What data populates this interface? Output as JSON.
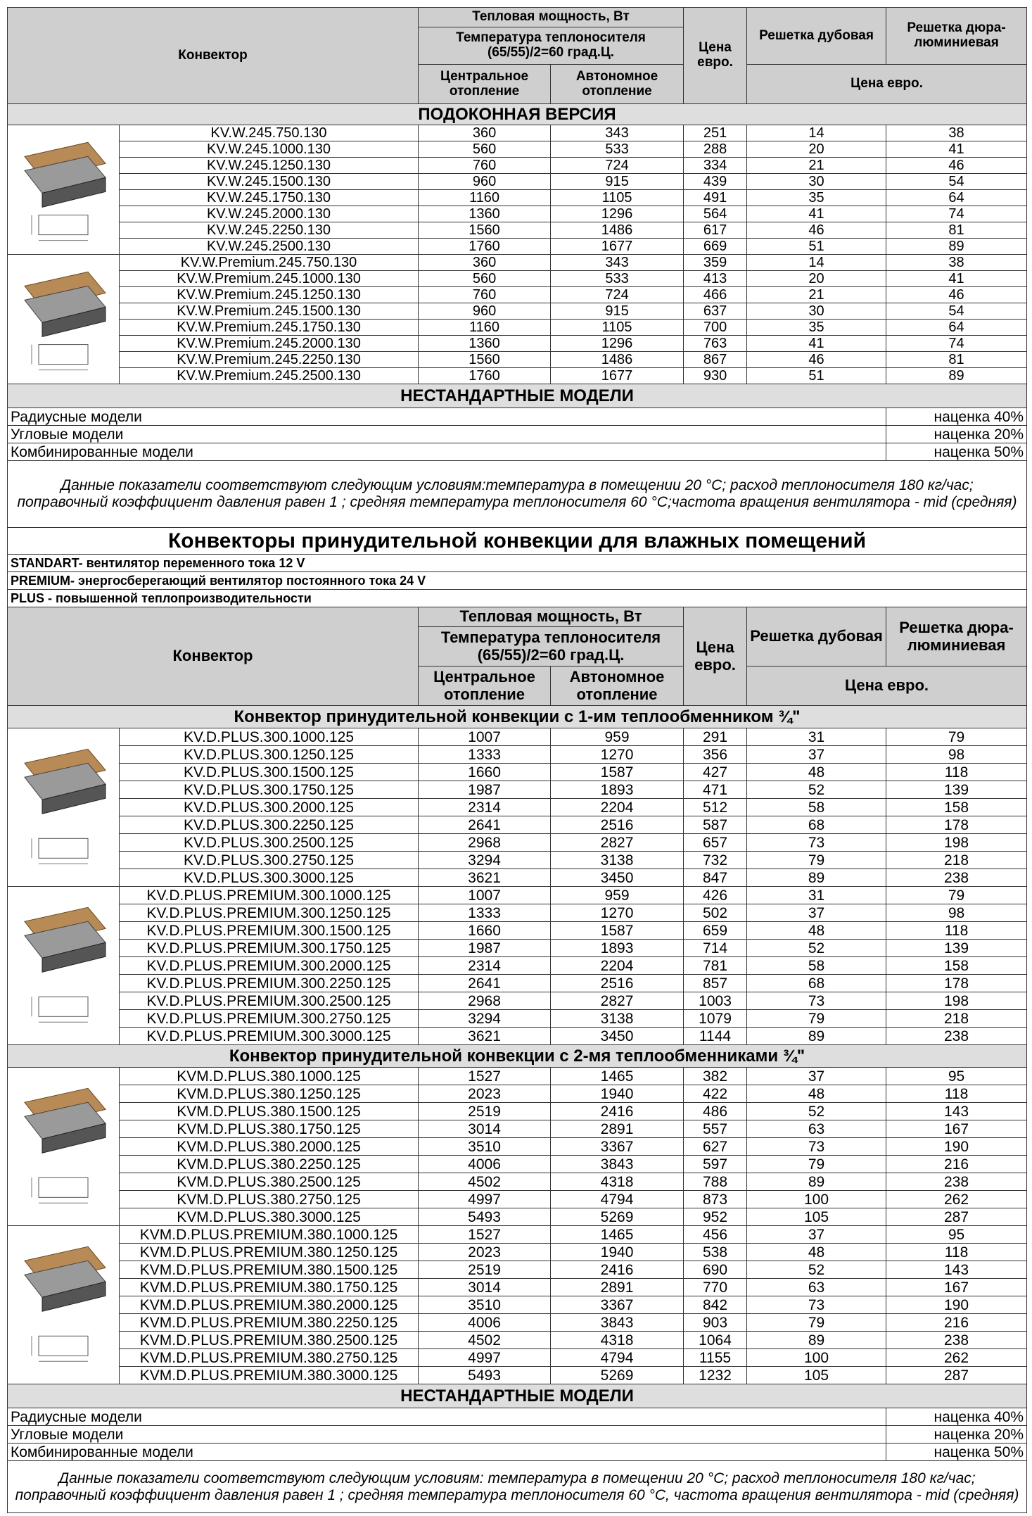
{
  "blocks": [
    {
      "header": {
        "konvektor": "Конвектор",
        "power": "Тепловая мощность, Вт",
        "temp": "Температура теплоносителя (65/55)/2=60 град.Ц.",
        "central": "Центральное отопление",
        "auto": "Автономное отопление",
        "price": "Цена евро.",
        "oak": "Решетка дубовая",
        "alu": "Решетка дюра-люминиевая",
        "price2": "Цена  евро."
      },
      "sections": [
        {
          "title": "ПОДОКОННАЯ ВЕРСИЯ",
          "groups": [
            {
              "rows": [
                [
                  "KV.W.245.750.130",
                  360,
                  343,
                  251,
                  14,
                  38
                ],
                [
                  "KV.W.245.1000.130",
                  560,
                  533,
                  288,
                  20,
                  41
                ],
                [
                  "KV.W.245.1250.130",
                  760,
                  724,
                  334,
                  21,
                  46
                ],
                [
                  "KV.W.245.1500.130",
                  960,
                  915,
                  439,
                  30,
                  54
                ],
                [
                  "KV.W.245.1750.130",
                  1160,
                  1105,
                  491,
                  35,
                  64
                ],
                [
                  "KV.W.245.2000.130",
                  1360,
                  1296,
                  564,
                  41,
                  74
                ],
                [
                  "KV.W.245.2250.130",
                  1560,
                  1486,
                  617,
                  46,
                  81
                ],
                [
                  "KV.W.245.2500.130",
                  1760,
                  1677,
                  669,
                  51,
                  89
                ]
              ]
            },
            {
              "rows": [
                [
                  "KV.W.Premium.245.750.130",
                  360,
                  343,
                  359,
                  14,
                  38
                ],
                [
                  "KV.W.Premium.245.1000.130",
                  560,
                  533,
                  413,
                  20,
                  41
                ],
                [
                  "KV.W.Premium.245.1250.130",
                  760,
                  724,
                  466,
                  21,
                  46
                ],
                [
                  "KV.W.Premium.245.1500.130",
                  960,
                  915,
                  637,
                  30,
                  54
                ],
                [
                  "KV.W.Premium.245.1750.130",
                  1160,
                  1105,
                  700,
                  35,
                  64
                ],
                [
                  "KV.W.Premium.245.2000.130",
                  1360,
                  1296,
                  763,
                  41,
                  74
                ],
                [
                  "KV.W.Premium.245.2250.130",
                  1560,
                  1486,
                  867,
                  46,
                  81
                ],
                [
                  "KV.W.Premium.245.2500.130",
                  1760,
                  1677,
                  930,
                  51,
                  89
                ]
              ]
            }
          ]
        }
      ],
      "nonstandard": {
        "title": "НЕСТАНДАРТНЫЕ МОДЕЛИ",
        "rows": [
          [
            "Радиусные модели",
            "наценка 40%"
          ],
          [
            "Угловые модели",
            "наценка 20%"
          ],
          [
            "Комбинированные модели",
            "наценка 50%"
          ]
        ]
      },
      "note": "Данные показатели соответствуют следующим условиям:температура в помещении  20 °С; расход теплоносителя 180 кг/час; поправочный коэффициент давления равен 1 ; средняя температура теплоносителя 60 °С;частота вращения вентилятора - mid (средняя)"
    },
    {
      "title": "Конвекторы принудительной конвекции для влажных помещений",
      "lines": [
        "STANDART- вентилятор переменного тока 12 V",
        "PREMIUM- энергосберегающий вентилятор постоянного тока  24 V",
        "PLUS - повышенной теплопроизводительности"
      ],
      "header": {
        "konvektor": "Конвектор",
        "power": "Тепловая мощность, Вт",
        "temp": "Температура теплоносителя (65/55)/2=60 град.Ц.",
        "central": "Центральное отопление",
        "auto": "Автономное отопление",
        "price": "Цена евро.",
        "oak": "Решетка дубовая",
        "alu": "Решетка дюра-люминиевая",
        "price2": "Цена  евро."
      },
      "sections": [
        {
          "title": "Конвектор принудительной конвекции с 1-им теплообменником  ¾\"",
          "groups": [
            {
              "rows": [
                [
                  "KV.D.PLUS.300.1000.125",
                  1007,
                  959,
                  291,
                  31,
                  79
                ],
                [
                  "KV.D.PLUS.300.1250.125",
                  1333,
                  1270,
                  356,
                  37,
                  98
                ],
                [
                  "KV.D.PLUS.300.1500.125",
                  1660,
                  1587,
                  427,
                  48,
                  118
                ],
                [
                  "KV.D.PLUS.300.1750.125",
                  1987,
                  1893,
                  471,
                  52,
                  139
                ],
                [
                  "KV.D.PLUS.300.2000.125",
                  2314,
                  2204,
                  512,
                  58,
                  158
                ],
                [
                  "KV.D.PLUS.300.2250.125",
                  2641,
                  2516,
                  587,
                  68,
                  178
                ],
                [
                  "KV.D.PLUS.300.2500.125",
                  2968,
                  2827,
                  657,
                  73,
                  198
                ],
                [
                  "KV.D.PLUS.300.2750.125",
                  3294,
                  3138,
                  732,
                  79,
                  218
                ],
                [
                  "KV.D.PLUS.300.3000.125",
                  3621,
                  3450,
                  847,
                  89,
                  238
                ]
              ]
            },
            {
              "rows": [
                [
                  "KV.D.PLUS.PREMIUM.300.1000.125",
                  1007,
                  959,
                  426,
                  31,
                  79
                ],
                [
                  "KV.D.PLUS.PREMIUM.300.1250.125",
                  1333,
                  1270,
                  502,
                  37,
                  98
                ],
                [
                  "KV.D.PLUS.PREMIUM.300.1500.125",
                  1660,
                  1587,
                  659,
                  48,
                  118
                ],
                [
                  "KV.D.PLUS.PREMIUM.300.1750.125",
                  1987,
                  1893,
                  714,
                  52,
                  139
                ],
                [
                  "KV.D.PLUS.PREMIUM.300.2000.125",
                  2314,
                  2204,
                  781,
                  58,
                  158
                ],
                [
                  "KV.D.PLUS.PREMIUM.300.2250.125",
                  2641,
                  2516,
                  857,
                  68,
                  178
                ],
                [
                  "KV.D.PLUS.PREMIUM.300.2500.125",
                  2968,
                  2827,
                  1003,
                  73,
                  198
                ],
                [
                  "KV.D.PLUS.PREMIUM.300.2750.125",
                  3294,
                  3138,
                  1079,
                  79,
                  218
                ],
                [
                  "KV.D.PLUS.PREMIUM.300.3000.125",
                  3621,
                  3450,
                  1144,
                  89,
                  238
                ]
              ]
            }
          ]
        },
        {
          "title": "Конвектор принудительной конвекции с 2-мя теплообменниками ¾\"",
          "groups": [
            {
              "rows": [
                [
                  "KVM.D.PLUS.380.1000.125",
                  1527,
                  1465,
                  382,
                  37,
                  95
                ],
                [
                  "KVM.D.PLUS.380.1250.125",
                  2023,
                  1940,
                  422,
                  48,
                  118
                ],
                [
                  "KVM.D.PLUS.380.1500.125",
                  2519,
                  2416,
                  486,
                  52,
                  143
                ],
                [
                  "KVM.D.PLUS.380.1750.125",
                  3014,
                  2891,
                  557,
                  63,
                  167
                ],
                [
                  "KVM.D.PLUS.380.2000.125",
                  3510,
                  3367,
                  627,
                  73,
                  190
                ],
                [
                  "KVM.D.PLUS.380.2250.125",
                  4006,
                  3843,
                  597,
                  79,
                  216
                ],
                [
                  "KVM.D.PLUS.380.2500.125",
                  4502,
                  4318,
                  788,
                  89,
                  238
                ],
                [
                  "KVM.D.PLUS.380.2750.125",
                  4997,
                  4794,
                  873,
                  100,
                  262
                ],
                [
                  "KVM.D.PLUS.380.3000.125",
                  5493,
                  5269,
                  952,
                  105,
                  287
                ]
              ]
            },
            {
              "rows": [
                [
                  "KVM.D.PLUS.PREMIUM.380.1000.125",
                  1527,
                  1465,
                  456,
                  37,
                  95
                ],
                [
                  "KVM.D.PLUS.PREMIUM.380.1250.125",
                  2023,
                  1940,
                  538,
                  48,
                  118
                ],
                [
                  "KVM.D.PLUS.PREMIUM.380.1500.125",
                  2519,
                  2416,
                  690,
                  52,
                  143
                ],
                [
                  "KVM.D.PLUS.PREMIUM.380.1750.125",
                  3014,
                  2891,
                  770,
                  63,
                  167
                ],
                [
                  "KVM.D.PLUS.PREMIUM.380.2000.125",
                  3510,
                  3367,
                  842,
                  73,
                  190
                ],
                [
                  "KVM.D.PLUS.PREMIUM.380.2250.125",
                  4006,
                  3843,
                  903,
                  79,
                  216
                ],
                [
                  "KVM.D.PLUS.PREMIUM.380.2500.125",
                  4502,
                  4318,
                  1064,
                  89,
                  238
                ],
                [
                  "KVM.D.PLUS.PREMIUM.380.2750.125",
                  4997,
                  4794,
                  1155,
                  100,
                  262
                ],
                [
                  "KVM.D.PLUS.PREMIUM.380.3000.125",
                  5493,
                  5269,
                  1232,
                  105,
                  287
                ]
              ]
            }
          ]
        }
      ],
      "nonstandard": {
        "title": "НЕСТАНДАРТНЫЕ МОДЕЛИ",
        "rows": [
          [
            "Радиусные модели",
            "наценка 40%"
          ],
          [
            "Угловые модели",
            "наценка 20%"
          ],
          [
            "Комбинированные модели",
            "наценка 50%"
          ]
        ]
      },
      "note": "Данные показатели соответствуют следующим условиям:  температура в помещении  20 °С; расход теплоносителя 180 кг/час; поправочный коэффициент давления равен 1 ; средняя температура теплоносителя 60 °С, частота вращения вентилятора - mid (средняя)"
    }
  ]
}
